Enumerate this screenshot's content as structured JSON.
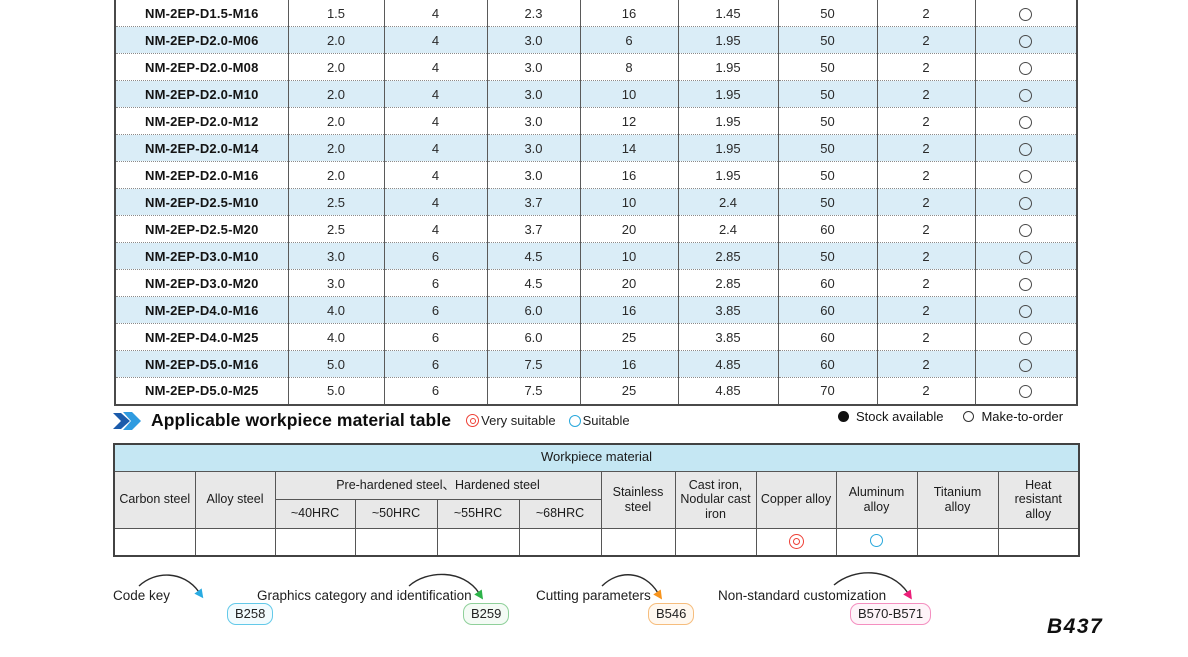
{
  "spec_table": {
    "stock_symbol": "○",
    "rows": [
      {
        "model": "NM-2EP-D1.5-M16",
        "values": [
          "1.5",
          "4",
          "2.3",
          "16",
          "1.45",
          "50",
          "2"
        ],
        "stock": "Make-to-order"
      },
      {
        "model": "NM-2EP-D2.0-M06",
        "values": [
          "2.0",
          "4",
          "3.0",
          "6",
          "1.95",
          "50",
          "2"
        ],
        "stock": "Make-to-order"
      },
      {
        "model": "NM-2EP-D2.0-M08",
        "values": [
          "2.0",
          "4",
          "3.0",
          "8",
          "1.95",
          "50",
          "2"
        ],
        "stock": "Make-to-order"
      },
      {
        "model": "NM-2EP-D2.0-M10",
        "values": [
          "2.0",
          "4",
          "3.0",
          "10",
          "1.95",
          "50",
          "2"
        ],
        "stock": "Make-to-order"
      },
      {
        "model": "NM-2EP-D2.0-M12",
        "values": [
          "2.0",
          "4",
          "3.0",
          "12",
          "1.95",
          "50",
          "2"
        ],
        "stock": "Make-to-order"
      },
      {
        "model": "NM-2EP-D2.0-M14",
        "values": [
          "2.0",
          "4",
          "3.0",
          "14",
          "1.95",
          "50",
          "2"
        ],
        "stock": "Make-to-order"
      },
      {
        "model": "NM-2EP-D2.0-M16",
        "values": [
          "2.0",
          "4",
          "3.0",
          "16",
          "1.95",
          "50",
          "2"
        ],
        "stock": "Make-to-order"
      },
      {
        "model": "NM-2EP-D2.5-M10",
        "values": [
          "2.5",
          "4",
          "3.7",
          "10",
          "2.4",
          "50",
          "2"
        ],
        "stock": "Make-to-order"
      },
      {
        "model": "NM-2EP-D2.5-M20",
        "values": [
          "2.5",
          "4",
          "3.7",
          "20",
          "2.4",
          "60",
          "2"
        ],
        "stock": "Make-to-order"
      },
      {
        "model": "NM-2EP-D3.0-M10",
        "values": [
          "3.0",
          "6",
          "4.5",
          "10",
          "2.85",
          "50",
          "2"
        ],
        "stock": "Make-to-order"
      },
      {
        "model": "NM-2EP-D3.0-M20",
        "values": [
          "3.0",
          "6",
          "4.5",
          "20",
          "2.85",
          "60",
          "2"
        ],
        "stock": "Make-to-order"
      },
      {
        "model": "NM-2EP-D4.0-M16",
        "values": [
          "4.0",
          "6",
          "6.0",
          "16",
          "3.85",
          "60",
          "2"
        ],
        "stock": "Make-to-order"
      },
      {
        "model": "NM-2EP-D4.0-M25",
        "values": [
          "4.0",
          "6",
          "6.0",
          "25",
          "3.85",
          "60",
          "2"
        ],
        "stock": "Make-to-order"
      },
      {
        "model": "NM-2EP-D5.0-M16",
        "values": [
          "5.0",
          "6",
          "7.5",
          "16",
          "4.85",
          "60",
          "2"
        ],
        "stock": "Make-to-order"
      },
      {
        "model": "NM-2EP-D5.0-M25",
        "values": [
          "5.0",
          "6",
          "7.5",
          "25",
          "4.85",
          "70",
          "2"
        ],
        "stock": "Make-to-order"
      }
    ]
  },
  "section": {
    "title": "Applicable workpiece material table",
    "legend": {
      "very_suitable": "Very suitable",
      "suitable": "Suitable"
    },
    "stock_legend": {
      "stock_available": "Stock available",
      "make_to_order": "Make-to-order"
    },
    "colors": {
      "very_suitable": "#ee4036",
      "suitable": "#29a8dc",
      "stock_available": "#111111"
    }
  },
  "material_table": {
    "title": "Workpiece material",
    "headers": {
      "carbon": "Carbon steel",
      "alloy": "Alloy steel",
      "prehardened_group": "Pre-hardened steel、Hardened steel",
      "hrc": [
        "~40HRC",
        "~50HRC",
        "~55HRC",
        "~68HRC"
      ],
      "stainless": "Stainless steel",
      "cast_iron": "Cast iron, Nodular cast iron",
      "copper": "Copper alloy",
      "aluminum": "Aluminum alloy",
      "titanium": "Titanium alloy",
      "heat": "Heat resistant alloy"
    },
    "ratings": {
      "copper": "Very suitable",
      "aluminum": "Suitable"
    }
  },
  "footer": {
    "refs": [
      {
        "label": "Code key",
        "page": "B258",
        "arrow_color": "#29abe2",
        "badge_border": "#63c9e9",
        "badge_bg": "#f2fbfe"
      },
      {
        "label": "Graphics category and identification",
        "page": "B259",
        "arrow_color": "#2db34a",
        "badge_border": "#8fd09a",
        "badge_bg": "#f4fbf5"
      },
      {
        "label": "Cutting parameters",
        "page": "B546",
        "arrow_color": "#f7941d",
        "badge_border": "#f6bd7d",
        "badge_bg": "#fff8f0"
      },
      {
        "label": "Non-standard customization",
        "page": "B570-B571",
        "arrow_color": "#ec1e79",
        "badge_border": "#f48fc0",
        "badge_bg": "#fef4f9"
      }
    ],
    "page_number": "B437"
  }
}
